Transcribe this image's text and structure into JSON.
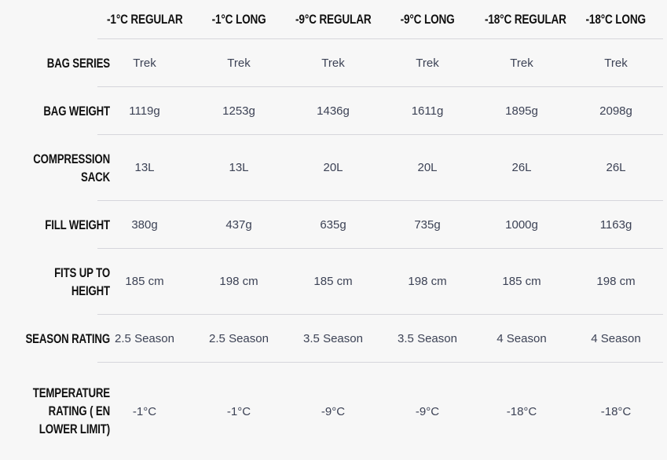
{
  "columns": [
    "-1°C REGULAR",
    "-1°C LONG",
    "-9°C REGULAR",
    "-9°C LONG",
    "-18°C REGULAR",
    "-18°C LONG"
  ],
  "rows": [
    {
      "label": "BAG SERIES",
      "values": [
        "Trek",
        "Trek",
        "Trek",
        "Trek",
        "Trek",
        "Trek"
      ]
    },
    {
      "label": "BAG WEIGHT",
      "values": [
        "1119g",
        "1253g",
        "1436g",
        "1611g",
        "1895g",
        "2098g"
      ]
    },
    {
      "label": "COMPRESSION SACK",
      "values": [
        "13L",
        "13L",
        "20L",
        "20L",
        "26L",
        "26L"
      ]
    },
    {
      "label": "FILL WEIGHT",
      "values": [
        "380g",
        "437g",
        "635g",
        "735g",
        "1000g",
        "1163g"
      ]
    },
    {
      "label": "FITS UP TO HEIGHT",
      "values": [
        "185 cm",
        "198 cm",
        "185 cm",
        "198 cm",
        "185 cm",
        "198 cm"
      ]
    },
    {
      "label": "SEASON RATING",
      "values": [
        "2.5 Season",
        "2.5 Season",
        "3.5 Season",
        "3.5 Season",
        "4 Season",
        "4 Season"
      ]
    },
    {
      "label": "TEMPERATURE RATING ( EN LOWER LIMIT)",
      "values": [
        "-1°C",
        "-1°C",
        "-9°C",
        "-9°C",
        "-18°C",
        "-18°C"
      ]
    }
  ]
}
